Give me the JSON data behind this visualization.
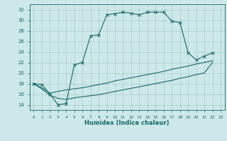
{
  "xlabel": "Humidex (Indice chaleur)",
  "bg_color": "#cce8e8",
  "grid_color": "#aacccc",
  "line_color": "#1a6666",
  "xlim": [
    -0.5,
    23.5
  ],
  "ylim": [
    13,
    33
  ],
  "xticks": [
    0,
    1,
    2,
    3,
    4,
    5,
    6,
    7,
    8,
    9,
    10,
    11,
    12,
    13,
    14,
    15,
    16,
    17,
    18,
    19,
    20,
    21,
    22,
    23
  ],
  "yticks": [
    14,
    16,
    18,
    20,
    22,
    24,
    26,
    28,
    30,
    32
  ],
  "series1_x": [
    0,
    1,
    2,
    3,
    4,
    5,
    6,
    7,
    8,
    9,
    10,
    11,
    12,
    13,
    14,
    15,
    16,
    17,
    18,
    19,
    20,
    21,
    22
  ],
  "series1_y": [
    18.0,
    17.8,
    16.0,
    14.0,
    14.2,
    21.5,
    22.0,
    27.0,
    27.2,
    31.0,
    31.2,
    31.5,
    31.3,
    31.0,
    31.5,
    31.5,
    31.5,
    29.8,
    29.5,
    23.8,
    22.5,
    23.2,
    23.8
  ],
  "series2_x": [
    0,
    1,
    2,
    3,
    4,
    5,
    6,
    7,
    8,
    9,
    10,
    11,
    12,
    13,
    14,
    15,
    16,
    17,
    18,
    19,
    20,
    21,
    22
  ],
  "series2_y": [
    18.0,
    17.2,
    16.2,
    16.5,
    16.8,
    17.0,
    17.2,
    17.5,
    17.8,
    18.1,
    18.5,
    18.8,
    19.1,
    19.4,
    19.7,
    20.0,
    20.3,
    20.7,
    21.0,
    21.3,
    21.7,
    22.0,
    22.3
  ],
  "series3_x": [
    0,
    1,
    2,
    3,
    4,
    5,
    6,
    7,
    8,
    9,
    10,
    11,
    12,
    13,
    14,
    15,
    16,
    17,
    18,
    19,
    20,
    21,
    22
  ],
  "series3_y": [
    18.0,
    17.0,
    15.8,
    15.2,
    15.0,
    15.3,
    15.5,
    15.7,
    15.9,
    16.2,
    16.5,
    16.8,
    17.1,
    17.4,
    17.7,
    18.0,
    18.3,
    18.6,
    19.0,
    19.3,
    19.7,
    20.0,
    22.0
  ]
}
